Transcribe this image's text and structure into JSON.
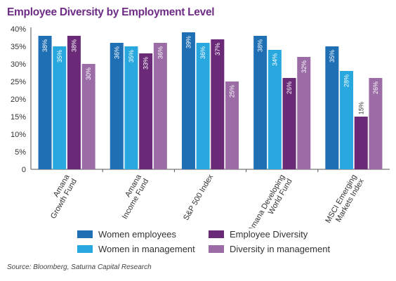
{
  "title": "Employee Diversity by Employment Level",
  "source": "Source: Bloomberg, Saturna Capital Research",
  "chart_data": {
    "type": "bar",
    "categories": [
      [
        "Amana",
        "Growth Fund"
      ],
      [
        "Amana",
        "Income Fund"
      ],
      [
        "S&P 500 Index"
      ],
      [
        "Amana Developing",
        "World Fund"
      ],
      [
        "MSCI Emerging",
        "Markets Index"
      ]
    ],
    "series": [
      {
        "name": "Women employees",
        "color": "#1f6fb5",
        "values": [
          38,
          36,
          39,
          38,
          35
        ]
      },
      {
        "name": "Women in management",
        "color": "#29a8e0",
        "values": [
          35,
          35,
          36,
          34,
          28
        ]
      },
      {
        "name": "Employee Diversity",
        "color": "#6a2a78",
        "values": [
          38,
          33,
          37,
          26,
          15
        ]
      },
      {
        "name": "Diversity in management",
        "color": "#9b6ca6",
        "values": [
          30,
          36,
          25,
          32,
          26
        ]
      }
    ],
    "data_labels": [
      [
        "38%",
        "35%",
        "38%",
        "30%"
      ],
      [
        "36%",
        "35%",
        "33%",
        "36%"
      ],
      [
        "39%",
        "36%",
        "37%",
        "25%"
      ],
      [
        "38%",
        "34%",
        "26%",
        "32%"
      ],
      [
        "35%",
        "28%",
        "15%",
        "26%"
      ]
    ],
    "yticks": [
      "0",
      "5%",
      "10%",
      "15%",
      "20%",
      "25%",
      "30%",
      "35%",
      "40%"
    ],
    "ylim": [
      0,
      40
    ],
    "grid": false,
    "legend_position": "bottom"
  },
  "legend": [
    {
      "label": "Women employees",
      "color": "#1f6fb5"
    },
    {
      "label": "Employee Diversity",
      "color": "#6a2a78"
    },
    {
      "label": "Women in management",
      "color": "#29a8e0"
    },
    {
      "label": "Diversity in management",
      "color": "#9b6ca6"
    }
  ]
}
